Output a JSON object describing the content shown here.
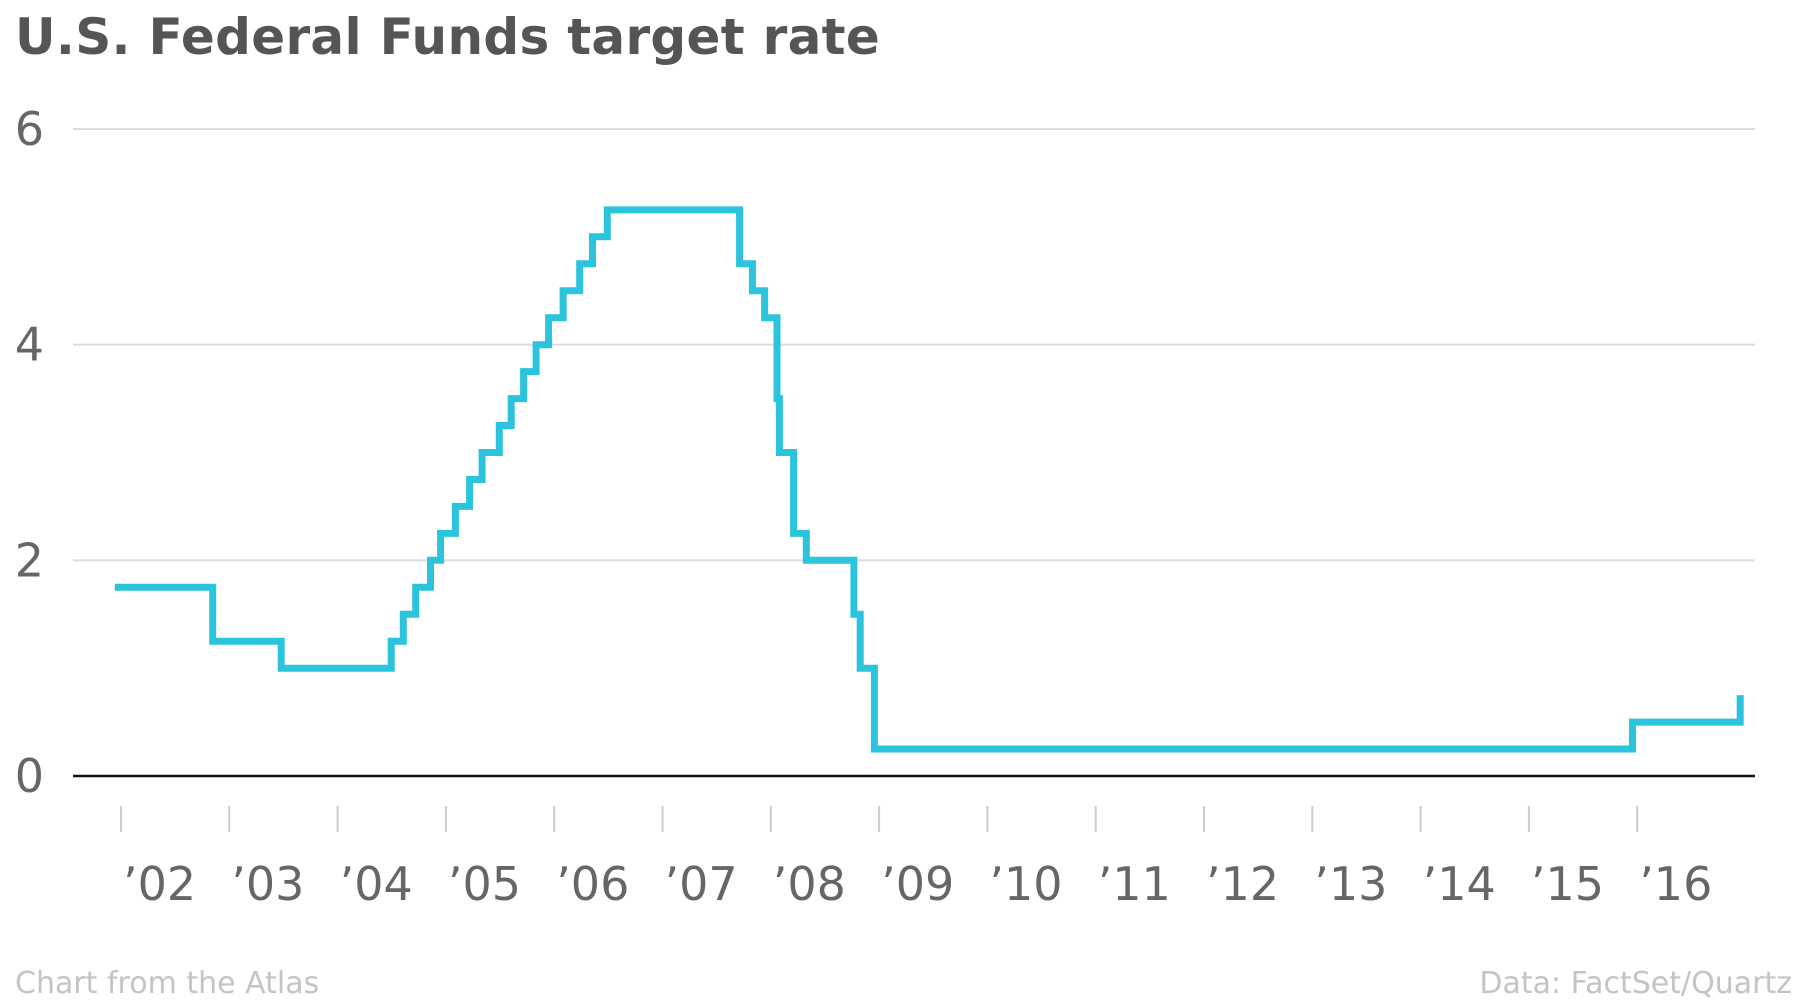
{
  "chart_data": {
    "type": "line",
    "title": "U.S. Federal Funds target rate",
    "xlabel": "",
    "ylabel": "",
    "ylim": [
      0,
      6
    ],
    "yticks": [
      0,
      2,
      4,
      6
    ],
    "yticks_labels": [
      "0",
      "2",
      "4",
      "6"
    ],
    "xlim": [
      2001.5,
      2016.9
    ],
    "xticks": [
      {
        "label": "’02",
        "year": 2002
      },
      {
        "label": "’03",
        "year": 2003
      },
      {
        "label": "’04",
        "year": 2004
      },
      {
        "label": "’05",
        "year": 2005
      },
      {
        "label": "’06",
        "year": 2006
      },
      {
        "label": "’07",
        "year": 2007
      },
      {
        "label": "’08",
        "year": 2008
      },
      {
        "label": "’09",
        "year": 2009
      },
      {
        "label": "’10",
        "year": 2010
      },
      {
        "label": "’11",
        "year": 2011
      },
      {
        "label": "’12",
        "year": 2012
      },
      {
        "label": "’13",
        "year": 2013
      },
      {
        "label": "’14",
        "year": 2014
      },
      {
        "label": "’15",
        "year": 2015
      },
      {
        "label": "’16",
        "year": 2016
      }
    ],
    "grid": true,
    "step": true,
    "series": [
      {
        "color": "#2bc4dc",
        "points": [
          [
            "2001-12-11",
            1.75
          ],
          [
            "2002-11-06",
            1.25
          ],
          [
            "2003-06-25",
            1.0
          ],
          [
            "2004-06-30",
            1.25
          ],
          [
            "2004-08-10",
            1.5
          ],
          [
            "2004-09-21",
            1.75
          ],
          [
            "2004-11-10",
            2.0
          ],
          [
            "2004-12-14",
            2.25
          ],
          [
            "2005-02-02",
            2.5
          ],
          [
            "2005-03-22",
            2.75
          ],
          [
            "2005-05-03",
            3.0
          ],
          [
            "2005-06-30",
            3.25
          ],
          [
            "2005-08-09",
            3.5
          ],
          [
            "2005-09-20",
            3.75
          ],
          [
            "2005-11-01",
            4.0
          ],
          [
            "2005-12-13",
            4.25
          ],
          [
            "2006-01-31",
            4.5
          ],
          [
            "2006-03-28",
            4.75
          ],
          [
            "2006-05-10",
            5.0
          ],
          [
            "2006-06-29",
            5.25
          ],
          [
            "2007-09-18",
            4.75
          ],
          [
            "2007-10-31",
            4.5
          ],
          [
            "2007-12-11",
            4.25
          ],
          [
            "2008-01-22",
            3.5
          ],
          [
            "2008-01-30",
            3.0
          ],
          [
            "2008-03-18",
            2.25
          ],
          [
            "2008-04-30",
            2.0
          ],
          [
            "2008-10-08",
            1.5
          ],
          [
            "2008-10-29",
            1.0
          ],
          [
            "2008-12-16",
            0.25
          ],
          [
            "2015-12-16",
            0.5
          ],
          [
            "2016-12-14",
            0.75
          ]
        ]
      }
    ]
  },
  "footer": {
    "source_credit": "Chart from the Atlas",
    "data_credit": "Data: FactSet/Quartz"
  }
}
